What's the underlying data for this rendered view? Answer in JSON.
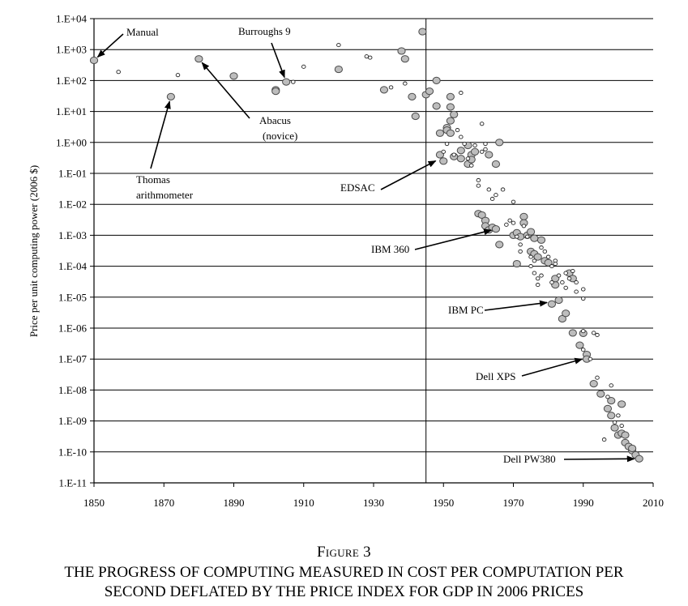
{
  "figure_label": "Figure 3",
  "caption_line1": "THE PROGRESS OF COMPUTING MEASURED IN COST PER COMPUTATION PER",
  "caption_line2": "SECOND DEFLATED BY THE PRICE INDEX FOR GDP IN 2006 PRICES",
  "chart_data": {
    "type": "scatter",
    "title": "",
    "xlabel": "",
    "ylabel": "Price per unit computing power (2006 $)",
    "xlim": [
      1850,
      2010
    ],
    "ylim_log10": [
      -11,
      4
    ],
    "y_scale": "log",
    "grid": "horizontal",
    "x_ticks": [
      "1850",
      "1870",
      "1890",
      "1910",
      "1930",
      "1950",
      "1970",
      "1990",
      "2010"
    ],
    "y_ticks": [
      "1.E+04",
      "1.E+03",
      "1.E+02",
      "1.E+01",
      "1.E+00",
      "1.E-01",
      "1.E-02",
      "1.E-03",
      "1.E-04",
      "1.E-05",
      "1.E-06",
      "1.E-07",
      "1.E-08",
      "1.E-09",
      "1.E-10",
      "1.E-11"
    ],
    "reference_line_x": 1945,
    "annotations": [
      {
        "lines": [
          "Manual"
        ],
        "x": 1850,
        "y": 450
      },
      {
        "lines": [
          "Burroughs 9"
        ],
        "x": 1905,
        "y": 90
      },
      {
        "lines": [
          "Thomas",
          "arithmometer"
        ],
        "x": 1872,
        "y": 30
      },
      {
        "lines": [
          "Abacus",
          "(novice)"
        ],
        "x": 1880,
        "y": 500
      },
      {
        "lines": [
          "EDSAC"
        ],
        "x": 1949,
        "y": 0.3
      },
      {
        "lines": [
          "IBM 360"
        ],
        "x": 1965,
        "y": 0.0016
      },
      {
        "lines": [
          "IBM PC"
        ],
        "x": 1981,
        "y": 7e-06
      },
      {
        "lines": [
          "Dell XPS"
        ],
        "x": 1991,
        "y": 1.1e-07
      },
      {
        "lines": [
          "Dell PW380"
        ],
        "x": 2006,
        "y": 6e-11
      }
    ],
    "series": [
      {
        "marker": "large-filled",
        "points": [
          [
            1850,
            450
          ],
          [
            1872,
            30
          ],
          [
            1880,
            500
          ],
          [
            1890,
            140
          ],
          [
            1902,
            50
          ],
          [
            1902,
            45
          ],
          [
            1905,
            90
          ],
          [
            1920,
            230
          ],
          [
            1933,
            50
          ],
          [
            1938,
            900
          ],
          [
            1939,
            500
          ],
          [
            1941,
            30
          ],
          [
            1942,
            7
          ],
          [
            1944,
            3800
          ],
          [
            1945,
            35
          ],
          [
            1946,
            45
          ],
          [
            1948,
            100
          ],
          [
            1948,
            15
          ],
          [
            1949,
            2
          ],
          [
            1949,
            0.4
          ],
          [
            1950,
            0.25
          ],
          [
            1951,
            3
          ],
          [
            1951,
            2.5
          ],
          [
            1952,
            30
          ],
          [
            1952,
            14
          ],
          [
            1952,
            5
          ],
          [
            1952,
            2
          ],
          [
            1953,
            0.35
          ],
          [
            1953,
            8
          ],
          [
            1955,
            0.3
          ],
          [
            1955,
            0.55
          ],
          [
            1957,
            0.2
          ],
          [
            1957,
            0.8
          ],
          [
            1958,
            0.4
          ],
          [
            1958,
            0.28
          ],
          [
            1959,
            0.5
          ],
          [
            1960,
            0.005
          ],
          [
            1961,
            0.0045
          ],
          [
            1962,
            0.003
          ],
          [
            1962,
            0.002
          ],
          [
            1963,
            0.4
          ],
          [
            1963,
            0.0015
          ],
          [
            1964,
            0.0018
          ],
          [
            1965,
            0.0016
          ],
          [
            1965,
            0.2
          ],
          [
            1966,
            1
          ],
          [
            1966,
            0.0005
          ],
          [
            1970,
            0.001
          ],
          [
            1971,
            0.0012
          ],
          [
            1971,
            0.00012
          ],
          [
            1972,
            0.0009
          ],
          [
            1973,
            0.004
          ],
          [
            1973,
            0.0025
          ],
          [
            1974,
            0.001
          ],
          [
            1975,
            0.0003
          ],
          [
            1975,
            0.0013
          ],
          [
            1976,
            0.0008
          ],
          [
            1976,
            0.00025
          ],
          [
            1977,
            0.0002
          ],
          [
            1978,
            0.0007
          ],
          [
            1979,
            0.00015
          ],
          [
            1980,
            0.00013
          ],
          [
            1981,
            6e-06
          ],
          [
            1982,
            2.5e-05
          ],
          [
            1982,
            4e-05
          ],
          [
            1983,
            8e-06
          ],
          [
            1984,
            2e-06
          ],
          [
            1985,
            3e-06
          ],
          [
            1986,
            6e-05
          ],
          [
            1987,
            4e-05
          ],
          [
            1987,
            7e-07
          ],
          [
            1989,
            2.8e-07
          ],
          [
            1990,
            6.8e-07
          ],
          [
            1991,
            1.4e-07
          ],
          [
            1991,
            1e-07
          ],
          [
            1993,
            1.6e-08
          ],
          [
            1995,
            7.5e-09
          ],
          [
            1997,
            2.5e-09
          ],
          [
            1998,
            1.5e-09
          ],
          [
            1998,
            4.5e-09
          ],
          [
            1999,
            6e-10
          ],
          [
            2000,
            3.5e-10
          ],
          [
            2001,
            4e-10
          ],
          [
            2001,
            3.5e-09
          ],
          [
            2002,
            3.5e-10
          ],
          [
            2002,
            2e-10
          ],
          [
            2003,
            1.5e-10
          ],
          [
            2004,
            1.1e-10
          ],
          [
            2004,
            1.3e-10
          ],
          [
            2005,
            8e-11
          ],
          [
            2006,
            6e-11
          ]
        ]
      },
      {
        "marker": "small-open",
        "points": [
          [
            1857,
            190
          ],
          [
            1874,
            150
          ],
          [
            1907,
            90
          ],
          [
            1910,
            280
          ],
          [
            1920,
            1400
          ],
          [
            1928,
            600
          ],
          [
            1929,
            550
          ],
          [
            1935,
            60
          ],
          [
            1939,
            80
          ],
          [
            1950,
            0.5
          ],
          [
            1951,
            0.9
          ],
          [
            1953,
            0.4
          ],
          [
            1954,
            2.5
          ],
          [
            1955,
            1.5
          ],
          [
            1955,
            40
          ],
          [
            1956,
            0.9
          ],
          [
            1957,
            0.3
          ],
          [
            1958,
            0.18
          ],
          [
            1959,
            0.8
          ],
          [
            1960,
            0.06
          ],
          [
            1960,
            0.04
          ],
          [
            1961,
            0.5
          ],
          [
            1961,
            4
          ],
          [
            1962,
            0.6
          ],
          [
            1962,
            0.9
          ],
          [
            1963,
            0.03
          ],
          [
            1964,
            0.015
          ],
          [
            1965,
            0.02
          ],
          [
            1967,
            0.03
          ],
          [
            1968,
            0.0022
          ],
          [
            1969,
            0.003
          ],
          [
            1970,
            0.012
          ],
          [
            1970,
            0.0025
          ],
          [
            1971,
            0.0009
          ],
          [
            1972,
            0.0005
          ],
          [
            1972,
            0.0003
          ],
          [
            1973,
            0.002
          ],
          [
            1974,
            0.0009
          ],
          [
            1975,
            0.0002
          ],
          [
            1975,
            0.0001
          ],
          [
            1976,
            6e-05
          ],
          [
            1976,
            0.00015
          ],
          [
            1977,
            4e-05
          ],
          [
            1977,
            2.5e-05
          ],
          [
            1978,
            0.0004
          ],
          [
            1978,
            5e-05
          ],
          [
            1979,
            0.0003
          ],
          [
            1980,
            0.0002
          ],
          [
            1981,
            0.0001
          ],
          [
            1981,
            3e-05
          ],
          [
            1982,
            0.00015
          ],
          [
            1982,
            0.00012
          ],
          [
            1983,
            5e-05
          ],
          [
            1984,
            3e-05
          ],
          [
            1985,
            6e-05
          ],
          [
            1985,
            2e-05
          ],
          [
            1986,
            4e-05
          ],
          [
            1987,
            7e-05
          ],
          [
            1988,
            3e-05
          ],
          [
            1988,
            1.5e-05
          ],
          [
            1990,
            2e-07
          ],
          [
            1990,
            1.8e-05
          ],
          [
            1990,
            9e-06
          ],
          [
            1990,
            8e-07
          ],
          [
            1992,
            1e-07
          ],
          [
            1993,
            7e-07
          ],
          [
            1994,
            6e-07
          ],
          [
            1994,
            2.5e-08
          ],
          [
            1996,
            2.5e-10
          ],
          [
            1997,
            6e-09
          ],
          [
            1998,
            1.4e-08
          ],
          [
            1999,
            9e-10
          ],
          [
            2000,
            1.5e-09
          ],
          [
            2001,
            7e-10
          ]
        ]
      }
    ]
  }
}
